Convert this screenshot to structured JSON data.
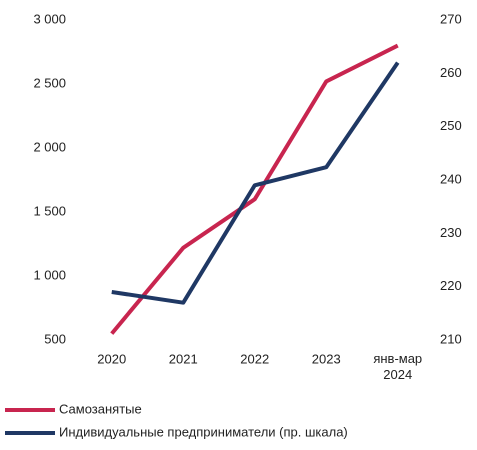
{
  "chart_data": {
    "type": "line",
    "categories": [
      "2020",
      "2021",
      "2022",
      "2023",
      "янв-мар 2024"
    ],
    "series": [
      {
        "name": "Самозанятые",
        "color": "#c8254f",
        "values": [
          550,
          1220,
          1600,
          2520,
          2800
        ]
      },
      {
        "name": "Индивидуальные предприниматели (пр. шкала)",
        "color": "#1f3864",
        "axis": "y2",
        "values": [
          219,
          217,
          239,
          242.4,
          262
        ]
      }
    ],
    "ylim": [
      500,
      3000
    ],
    "yticks": [
      500,
      {
        "value": 1000,
        "label": "1 000"
      },
      {
        "value": 1500,
        "label": "1 500"
      },
      {
        "value": 2000,
        "label": "2 000"
      },
      {
        "value": 2500,
        "label": "2 500"
      },
      {
        "value": 3000,
        "label": "3 000"
      }
    ],
    "y2lim": [
      210,
      270
    ],
    "y2ticks": [
      210,
      220,
      230,
      240,
      250,
      260,
      270
    ],
    "grid": false,
    "legend": "bottom"
  }
}
